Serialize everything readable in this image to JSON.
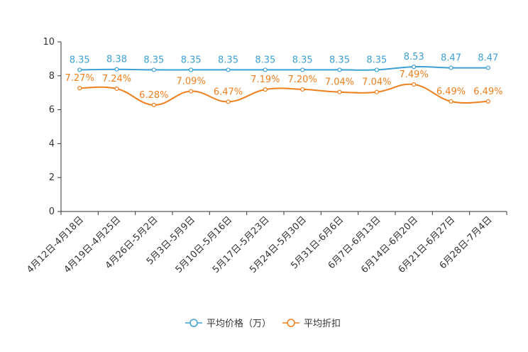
{
  "chart_data": {
    "type": "line",
    "categories": [
      "4月12日-4月18日",
      "4月19日-4月25日",
      "4月26日-5月2日",
      "5月3日-5月9日",
      "5月10日-5月16日",
      "5月17日-5月23日",
      "5月24日-5月30日",
      "5月31日-6月6日",
      "6月7日-6月13日",
      "6月14日-6月20日",
      "6月21日-6月27日",
      "6月28日-7月4日"
    ],
    "series": [
      {
        "name": "平均价格（万）",
        "color": "#3ea0d2",
        "values": [
          8.35,
          8.38,
          8.35,
          8.35,
          8.35,
          8.35,
          8.35,
          8.35,
          8.35,
          8.53,
          8.47,
          8.47
        ],
        "labels": [
          "8.35",
          "8.38",
          "8.35",
          "8.35",
          "8.35",
          "8.35",
          "8.35",
          "8.35",
          "8.35",
          "8.53",
          "8.47",
          "8.47"
        ]
      },
      {
        "name": "平均折扣",
        "color": "#f07f1e",
        "values": [
          7.27,
          7.24,
          6.28,
          7.09,
          6.47,
          7.19,
          7.2,
          7.04,
          7.04,
          7.49,
          6.49,
          6.49
        ],
        "labels": [
          "7.27%",
          "7.24%",
          "6.28%",
          "7.09%",
          "6.47%",
          "7.19%",
          "7.20%",
          "7.04%",
          "7.04%",
          "7.49%",
          "6.49%",
          "6.49%"
        ]
      }
    ],
    "ylim": [
      0,
      10
    ],
    "yticks": [
      "0",
      "2",
      "4",
      "6",
      "8",
      "10"
    ],
    "legend_position": "bottom-center",
    "grid": false
  }
}
